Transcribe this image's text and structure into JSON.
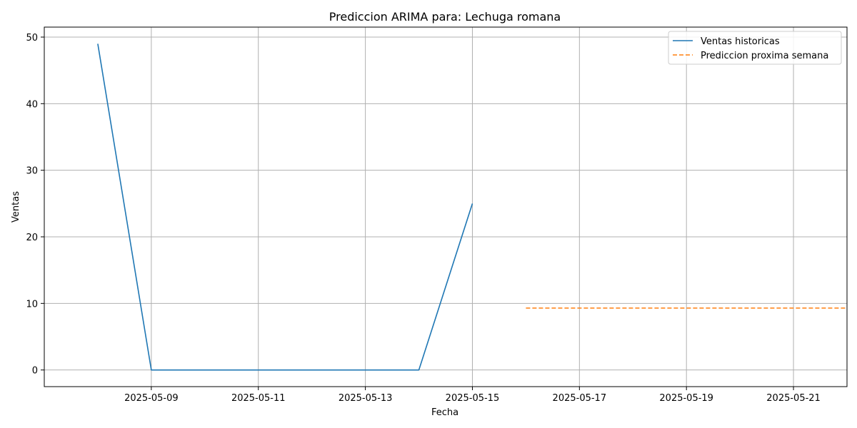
{
  "chart_data": {
    "type": "line",
    "title": "Prediccion ARIMA para: Lechuga romana",
    "xlabel": "Fecha",
    "ylabel": "Ventas",
    "xlim": [
      "2025-05-07",
      "2025-05-22"
    ],
    "ylim": [
      -2.5,
      51.5
    ],
    "x_ticks": [
      "2025-05-09",
      "2025-05-11",
      "2025-05-13",
      "2025-05-15",
      "2025-05-17",
      "2025-05-19",
      "2025-05-21"
    ],
    "y_ticks": [
      0,
      10,
      20,
      30,
      40,
      50
    ],
    "grid": true,
    "legend_position": "top-right",
    "series": [
      {
        "name": "Ventas historicas",
        "style": "solid",
        "color": "#1f77b4",
        "x": [
          "2025-05-08",
          "2025-05-09",
          "2025-05-10",
          "2025-05-11",
          "2025-05-12",
          "2025-05-13",
          "2025-05-14",
          "2025-05-15"
        ],
        "values": [
          49,
          0,
          0,
          0,
          0,
          0,
          0,
          25
        ]
      },
      {
        "name": "Prediccion proxima semana",
        "style": "dashed",
        "color": "#ff7f0e",
        "x": [
          "2025-05-16",
          "2025-05-17",
          "2025-05-18",
          "2025-05-19",
          "2025-05-20",
          "2025-05-21",
          "2025-05-22"
        ],
        "values": [
          9.3,
          9.3,
          9.3,
          9.3,
          9.3,
          9.3,
          9.3
        ]
      }
    ]
  }
}
